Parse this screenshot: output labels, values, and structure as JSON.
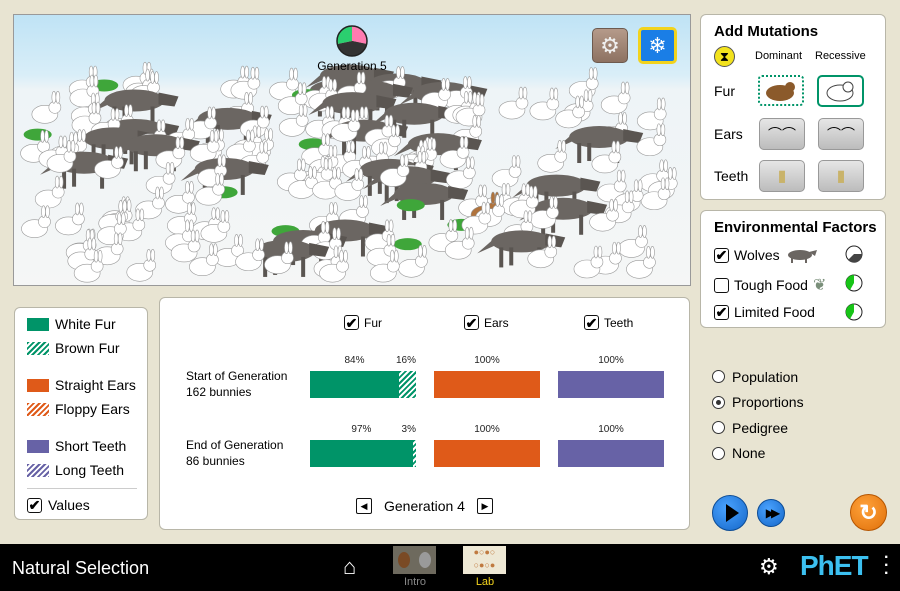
{
  "scene": {
    "generation_label": "Generation 5",
    "clock_colors": [
      "#2bcf6f",
      "#ff7bb0",
      "#333333"
    ],
    "settings_button": "environment-settings",
    "climate_button": "snowflake-icon",
    "colors": {
      "sky": "#bfe3f5",
      "snow": "#f5f6f6",
      "accent_button": "#1a7ee6",
      "button_border": "#f2d31d"
    }
  },
  "mutations": {
    "title": "Add Mutations",
    "dominant": "Dominant",
    "recessive": "Recessive",
    "rows": [
      {
        "label": "Fur"
      },
      {
        "label": "Ears"
      },
      {
        "label": "Teeth"
      }
    ]
  },
  "environment": {
    "title": "Environmental Factors",
    "factors": [
      {
        "label": "Wolves",
        "checked": true
      },
      {
        "label": "Tough Food",
        "checked": false
      },
      {
        "label": "Limited Food",
        "checked": true
      }
    ]
  },
  "views": {
    "options": [
      "Population",
      "Proportions",
      "Pedigree",
      "None"
    ],
    "selected": "Proportions"
  },
  "legend": {
    "items": [
      {
        "label": "White Fur",
        "style": "solid",
        "color": "#009468"
      },
      {
        "label": "Brown Fur",
        "style": "hatched",
        "color": "#009468"
      },
      {
        "label": "Straight Ears",
        "style": "solid",
        "color": "#df5a19"
      },
      {
        "label": "Floppy Ears",
        "style": "hatched",
        "color": "#df5a19"
      },
      {
        "label": "Short Teeth",
        "style": "solid",
        "color": "#6762a6"
      },
      {
        "label": "Long Teeth",
        "style": "hatched",
        "color": "#6762a6"
      }
    ],
    "values_label": "Values",
    "values_checked": true
  },
  "proportions": {
    "columns": [
      {
        "label": "Fur",
        "checked": true
      },
      {
        "label": "Ears",
        "checked": true
      },
      {
        "label": "Teeth",
        "checked": true
      }
    ],
    "rows": [
      {
        "title": "Start of Generation",
        "count": "162 bunnies",
        "fur": {
          "dominant": 84,
          "recessive": 16,
          "dominant_label": "84%",
          "recessive_label": "16%"
        },
        "ears": {
          "dominant": 100,
          "recessive": 0,
          "dominant_label": "100%"
        },
        "teeth": {
          "dominant": 100,
          "recessive": 0,
          "dominant_label": "100%"
        }
      },
      {
        "title": "End of Generation",
        "count": "86 bunnies",
        "fur": {
          "dominant": 97,
          "recessive": 3,
          "dominant_label": "97%",
          "recessive_label": "3%"
        },
        "ears": {
          "dominant": 100,
          "recessive": 0,
          "dominant_label": "100%"
        },
        "teeth": {
          "dominant": 100,
          "recessive": 0,
          "dominant_label": "100%"
        }
      }
    ],
    "generation_label": "Generation 4"
  },
  "navbar": {
    "title": "Natural Selection",
    "screens": [
      {
        "label": "Intro",
        "active": false
      },
      {
        "label": "Lab",
        "active": true
      }
    ],
    "logo": "PhET",
    "active_color": "#f2d31d"
  }
}
